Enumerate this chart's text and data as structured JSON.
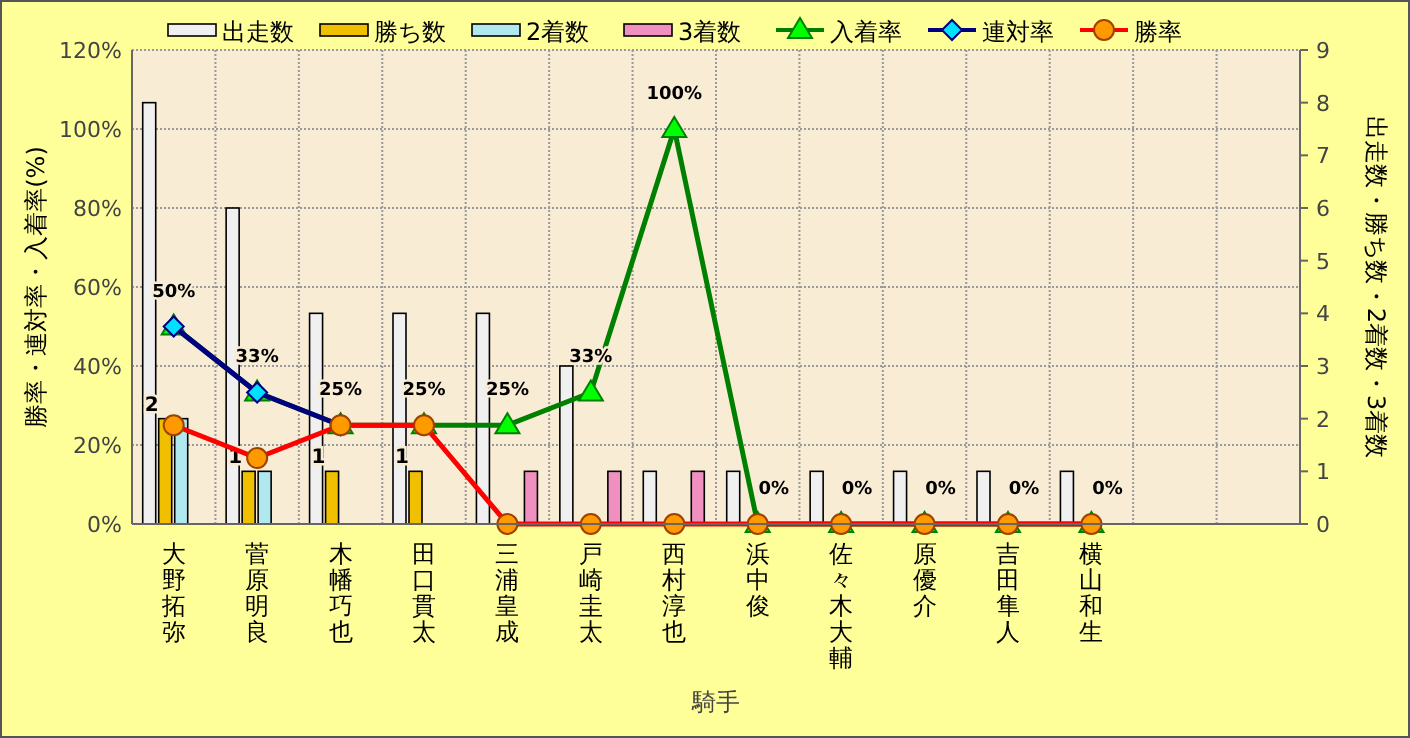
{
  "chart_data": {
    "type": "bar",
    "xlabel": "騎手",
    "ylabel": "勝率・連対率・入着率(%)",
    "y2label": "出走数・勝ち数・2着数・3着数",
    "categories": [
      "大野拓弥",
      "菅原明良",
      "木幡巧也",
      "田口貫太",
      "三浦皇成",
      "戸崎圭太",
      "西村淳也",
      "浜中俊",
      "佐々木大輔",
      "原優介",
      "吉田隼人",
      "横山和生",
      null,
      null
    ],
    "ylim": [
      0,
      120
    ],
    "yticks": [
      {
        "value": 0,
        "label": "0%"
      },
      {
        "value": 20,
        "label": "20%"
      },
      {
        "value": 40,
        "label": "40%"
      },
      {
        "value": 60,
        "label": "60%"
      },
      {
        "value": 80,
        "label": "80%"
      },
      {
        "value": 100,
        "label": "100%"
      },
      {
        "value": 120,
        "label": "120%"
      }
    ],
    "y2lim": [
      0,
      9
    ],
    "y2ticks": [
      0,
      1,
      2,
      3,
      4,
      5,
      6,
      7,
      8,
      9
    ],
    "grid": true,
    "legend": "top",
    "series": [
      {
        "name": "出走数",
        "axis": "y2",
        "color": "#f0f0f0",
        "values": [
          8,
          6,
          4,
          4,
          4,
          3,
          1,
          1,
          1,
          1,
          1,
          1,
          null,
          null
        ]
      },
      {
        "name": "勝ち数",
        "axis": "y2",
        "color": "#f0c000",
        "values": [
          2,
          1,
          1,
          1,
          0,
          0,
          0,
          0,
          0,
          0,
          0,
          0,
          null,
          null
        ],
        "value_labels": [
          "2",
          "1",
          "1",
          "1",
          null,
          null,
          null,
          null,
          null,
          null,
          null,
          null,
          null,
          null
        ]
      },
      {
        "name": "2着数",
        "axis": "y2",
        "color": "#b0e8f0",
        "values": [
          2,
          1,
          0,
          0,
          0,
          0,
          0,
          0,
          0,
          0,
          0,
          0,
          null,
          null
        ]
      },
      {
        "name": "3着数",
        "axis": "y2",
        "color": "#f090c0",
        "values": [
          0,
          0,
          0,
          0,
          1,
          1,
          1,
          0,
          0,
          0,
          0,
          0,
          null,
          null
        ]
      },
      {
        "name": "入着率",
        "type": "line",
        "axis": "y",
        "color": "#008000",
        "marker": "triangle",
        "values": [
          50,
          33.3,
          25,
          25,
          25,
          33.3,
          100,
          0,
          0,
          0,
          0,
          0,
          null,
          null
        ],
        "value_labels": [
          "50%",
          "33%",
          "25%",
          "25%",
          "25%",
          "33%",
          "100%",
          "0%",
          "0%",
          "0%",
          "0%",
          "0%",
          null,
          null
        ]
      },
      {
        "name": "連対率",
        "type": "line",
        "axis": "y",
        "color": "#000080",
        "marker": "diamond",
        "values": [
          50,
          33.3,
          25,
          null,
          null,
          null,
          null,
          null,
          null,
          null,
          null,
          null,
          null,
          null
        ]
      },
      {
        "name": "勝率",
        "type": "line",
        "axis": "y",
        "color": "#ff0000",
        "marker": "circle",
        "values": [
          25,
          16.7,
          25,
          25,
          0,
          0,
          0,
          0,
          0,
          0,
          0,
          0,
          null,
          null
        ]
      }
    ]
  }
}
